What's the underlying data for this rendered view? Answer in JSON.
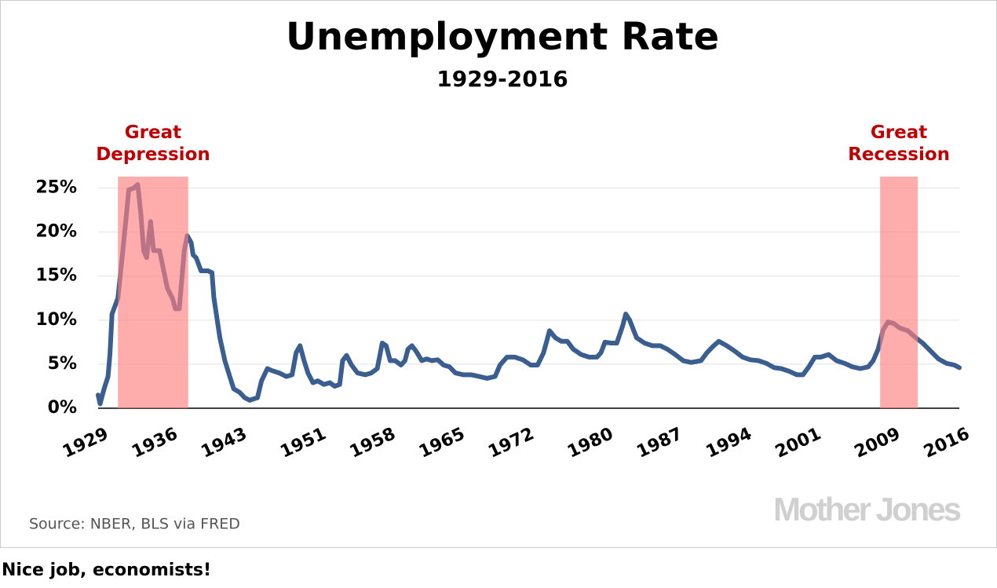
{
  "chart_data": {
    "type": "line",
    "title": "Unemployment Rate",
    "subtitle": "1929-2016",
    "source": "Source: NBER, BLS via FRED",
    "watermark": "Mother Jones",
    "color": "#3a5e8f",
    "x": [
      1929,
      1929.2,
      1929.6,
      1930,
      1930.2,
      1930.4,
      1931,
      1931.5,
      1932.1,
      1932.6,
      1933,
      1933.3,
      1933.6,
      1933.9,
      1934.3,
      1934.6,
      1935.2,
      1935.7,
      1936,
      1936.5,
      1936.8,
      1937.2,
      1937.7,
      1938,
      1938.4,
      1938.6,
      1938.9,
      1939.4,
      1940.1,
      1940.5,
      1940.7,
      1941.3,
      1941.8,
      1942.3,
      1942.7,
      1943.3,
      1943.8,
      1944.3,
      1945.1,
      1945.5,
      1946.1,
      1946.5,
      1947.3,
      1948,
      1948.6,
      1949,
      1949.4,
      1949.8,
      1950.2,
      1950.7,
      1951.2,
      1951.8,
      1952.4,
      1952.9,
      1953.4,
      1953.7,
      1954.1,
      1954.6,
      1955.2,
      1956,
      1956.6,
      1957.2,
      1957.7,
      1958.1,
      1958.5,
      1959,
      1959.6,
      1960,
      1960.3,
      1960.7,
      1961.1,
      1961.7,
      1962.2,
      1962.7,
      1963.3,
      1963.9,
      1964.5,
      1965.1,
      1965.9,
      1966.7,
      1967.5,
      1968.3,
      1969.1,
      1969.6,
      1970.3,
      1971.1,
      1971.9,
      1972.7,
      1973.4,
      1974,
      1974.6,
      1975.2,
      1975.8,
      1976.4,
      1977,
      1977.8,
      1978.6,
      1979.4,
      1979.8,
      1980.2,
      1980.8,
      1981.4,
      1982,
      1982.3,
      1982.7,
      1983.4,
      1984.2,
      1985,
      1985.8,
      1986.5,
      1987.3,
      1988.1,
      1988.9,
      1989.9,
      1990.5,
      1991.1,
      1991.7,
      1992.5,
      1993.3,
      1994.1,
      1994.9,
      1995.7,
      1996.5,
      1997.3,
      1998,
      1998.8,
      1999.6,
      2000.2,
      2000.8,
      2001.4,
      2002,
      2002.8,
      2003.6,
      2004.4,
      2005.2,
      2006,
      2006.8,
      2007.3,
      2007.8,
      2008.3,
      2008.8,
      2009.4,
      2010,
      2010.8,
      2011.6,
      2012.3,
      2013.1,
      2013.9,
      2014.7,
      2015.5,
      2016
    ],
    "values": [
      1.5,
      0.5,
      2.2,
      3.6,
      6.2,
      10.7,
      12.5,
      17.9,
      24.8,
      25,
      25.4,
      22.3,
      17.9,
      17.1,
      21.2,
      17.9,
      17.9,
      15.2,
      13.6,
      12.5,
      11.3,
      11.3,
      17.9,
      19.6,
      18.8,
      17.4,
      17.1,
      15.6,
      15.6,
      15.4,
      12.5,
      8,
      5.4,
      3.6,
      2.2,
      1.8,
      1.2,
      0.9,
      1.2,
      3.1,
      4.5,
      4.3,
      4,
      3.6,
      3.8,
      6.3,
      7.1,
      5.4,
      4,
      2.9,
      3.1,
      2.7,
      2.9,
      2.5,
      2.7,
      5.4,
      6,
      4.9,
      4,
      3.8,
      4,
      4.5,
      7.4,
      7.1,
      5.4,
      5.4,
      4.9,
      5.4,
      6.7,
      7.1,
      6.5,
      5.4,
      5.6,
      5.4,
      5.5,
      4.9,
      4.7,
      4,
      3.8,
      3.8,
      3.6,
      3.4,
      3.6,
      4.9,
      5.8,
      5.8,
      5.5,
      4.9,
      4.9,
      6.3,
      8.8,
      8,
      7.6,
      7.6,
      6.7,
      6.1,
      5.8,
      5.8,
      6.3,
      7.5,
      7.4,
      7.4,
      9.4,
      10.7,
      10,
      8,
      7.4,
      7.1,
      7.1,
      6.7,
      6.1,
      5.4,
      5.2,
      5.4,
      6.3,
      7,
      7.6,
      7.1,
      6.5,
      5.8,
      5.5,
      5.4,
      5.1,
      4.6,
      4.5,
      4.2,
      3.8,
      3.8,
      4.7,
      5.8,
      5.8,
      6.1,
      5.4,
      5.1,
      4.7,
      4.5,
      4.7,
      5.4,
      6.7,
      8.9,
      9.8,
      9.6,
      9.1,
      8.8,
      8,
      7.4,
      6.5,
      5.6,
      5.1,
      4.9,
      4.6
    ],
    "regions": [
      {
        "label": "Great Depression",
        "start": 1931,
        "end": 1938.1,
        "color": "#ff8080"
      },
      {
        "label": "Great Recession",
        "start": 2008,
        "end": 2011.8,
        "color": "#ff8080"
      }
    ],
    "xlim": [
      1929,
      2016
    ],
    "xticks": [
      1929,
      1936,
      1943,
      1951,
      1958,
      1965,
      1972,
      1980,
      1987,
      1994,
      2001,
      2009,
      2016
    ],
    "ylim": [
      0,
      26.3
    ],
    "yticks": [
      {
        "value": 0,
        "label": "0%"
      },
      {
        "value": 5,
        "label": "5%"
      },
      {
        "value": 10,
        "label": "10%"
      },
      {
        "value": 15,
        "label": "15%"
      },
      {
        "value": 20,
        "label": "20%"
      },
      {
        "value": 25,
        "label": "25%"
      }
    ],
    "grid": true
  },
  "caption": "Nice job, economists!"
}
